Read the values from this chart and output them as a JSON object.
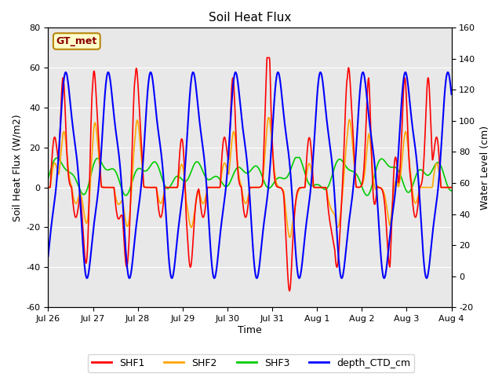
{
  "title": "Soil Heat Flux",
  "ylabel_left": "Soil Heat Flux (W/m2)",
  "ylabel_right": "Water Level (cm)",
  "xlabel": "Time",
  "ylim_left": [
    -60,
    80
  ],
  "ylim_right": [
    -20,
    160
  ],
  "figure_facecolor": "#ffffff",
  "plot_bg_color": "#e8e8e8",
  "annotation_text": "GT_met",
  "annotation_box_facecolor": "#ffffcc",
  "annotation_box_edgecolor": "#b8860b",
  "annotation_text_color": "#8b0000",
  "xtick_labels": [
    "Jul 26",
    "Jul 27",
    "Jul 28",
    "Jul 29",
    "Jul 30",
    "Jul 31",
    "Aug 1",
    "Aug 2",
    "Aug 3",
    "Aug 4"
  ],
  "yticks_left": [
    -60,
    -40,
    -20,
    0,
    20,
    40,
    60,
    80
  ],
  "yticks_right": [
    -20,
    0,
    20,
    40,
    60,
    80,
    100,
    120,
    140,
    160
  ],
  "grid_color": "#ffffff",
  "series_colors": {
    "SHF1": "#ff0000",
    "SHF2": "#ffa500",
    "SHF3": "#00cc00",
    "depth_CTD_cm": "#0000ff"
  },
  "legend_entries": [
    "SHF1",
    "SHF2",
    "SHF3",
    "depth_CTD_cm"
  ]
}
